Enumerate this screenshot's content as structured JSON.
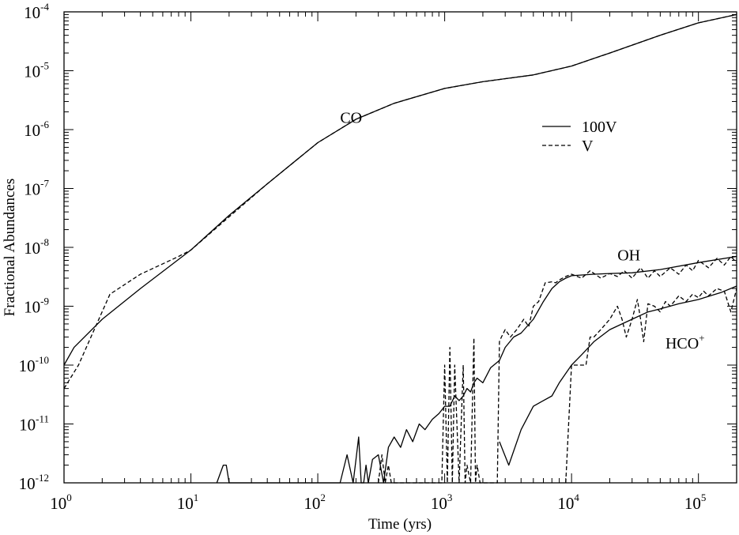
{
  "chart_data": {
    "type": "line",
    "xscale": "log",
    "yscale": "log",
    "xlabel": "Time (yrs)",
    "ylabel": "Fractional Abundances",
    "xlim": [
      1,
      200000
    ],
    "ylim": [
      1e-12,
      0.0001
    ],
    "x_ticks": [
      {
        "base": "10",
        "exp": "0"
      },
      {
        "base": "10",
        "exp": "1"
      },
      {
        "base": "10",
        "exp": "2"
      },
      {
        "base": "10",
        "exp": "3"
      },
      {
        "base": "10",
        "exp": "4"
      },
      {
        "base": "10",
        "exp": "5"
      }
    ],
    "y_ticks": [
      {
        "base": "10",
        "exp": "-12"
      },
      {
        "base": "10",
        "exp": "-11"
      },
      {
        "base": "10",
        "exp": "-10"
      },
      {
        "base": "10",
        "exp": "-9"
      },
      {
        "base": "10",
        "exp": "-8"
      },
      {
        "base": "10",
        "exp": "-7"
      },
      {
        "base": "10",
        "exp": "-6"
      },
      {
        "base": "10",
        "exp": "-5"
      },
      {
        "base": "10",
        "exp": "-4"
      }
    ],
    "legend": [
      {
        "label": "100V",
        "style": "solid"
      },
      {
        "label": "V",
        "style": "dashed"
      }
    ],
    "annotations": [
      {
        "text": "CO",
        "sup": "",
        "x": 150,
        "y": 1.3e-06
      },
      {
        "text": "OH",
        "sup": "",
        "x": 23000,
        "y": 6e-09
      },
      {
        "text": "HCO",
        "sup": "+",
        "x": 55000,
        "y": 1.9e-10
      }
    ],
    "series": [
      {
        "name": "CO 100V",
        "style": "solid",
        "x": [
          1,
          1.2,
          2,
          4,
          10,
          20,
          40,
          100,
          200,
          400,
          1000,
          2000,
          5000,
          10000,
          20000,
          50000,
          100000,
          200000
        ],
        "y": [
          1e-10,
          2e-10,
          6e-10,
          2e-09,
          9e-09,
          3.5e-08,
          1.2e-07,
          6e-07,
          1.5e-06,
          2.8e-06,
          5e-06,
          6.5e-06,
          8.5e-06,
          1.2e-05,
          2e-05,
          4e-05,
          6.5e-05,
          9e-05
        ]
      },
      {
        "name": "CO V",
        "style": "dashed",
        "x": [
          1,
          1.3,
          2.3,
          4,
          8,
          10,
          20,
          40,
          100,
          200,
          400,
          1000,
          2000,
          5000,
          10000,
          20000,
          50000,
          100000,
          200000
        ],
        "y": [
          4e-11,
          1e-10,
          1.6e-09,
          3.5e-09,
          7e-09,
          9e-09,
          3.3e-08,
          1.2e-07,
          6e-07,
          1.5e-06,
          2.8e-06,
          5e-06,
          6.5e-06,
          8.5e-06,
          1.2e-05,
          2e-05,
          4e-05,
          6.5e-05,
          9e-05
        ]
      },
      {
        "name": "OH 100V",
        "style": "solid",
        "x": [
          16,
          18,
          19,
          20,
          150,
          170,
          190,
          200,
          210,
          220,
          230,
          240,
          250,
          270,
          300,
          330,
          360,
          400,
          450,
          500,
          560,
          630,
          700,
          800,
          900,
          1000,
          1100,
          1200,
          1300,
          1400,
          1500,
          1600,
          1700,
          1800,
          2000,
          2300,
          2700,
          3000,
          3500,
          4000,
          5000,
          6000,
          7000,
          8000,
          9000,
          10000,
          15000,
          20000,
          30000,
          50000,
          100000,
          200000
        ],
        "y": [
          1e-12,
          2e-12,
          2e-12,
          1e-12,
          1e-12,
          3e-12,
          1e-12,
          2.5e-12,
          6e-12,
          1e-12,
          1e-12,
          2e-12,
          1e-12,
          2.5e-12,
          3e-12,
          1e-12,
          4e-12,
          6e-12,
          4e-12,
          8e-12,
          5e-12,
          1e-11,
          8e-12,
          1.2e-11,
          1.5e-11,
          2e-11,
          2e-11,
          3e-11,
          2.5e-11,
          3e-11,
          4e-11,
          3.5e-11,
          5e-11,
          6e-11,
          5e-11,
          9e-11,
          1.2e-10,
          2e-10,
          3e-10,
          3.5e-10,
          6e-10,
          1.2e-09,
          2e-09,
          2.6e-09,
          3e-09,
          3.3e-09,
          3.5e-09,
          3.6e-09,
          3.7e-09,
          4.2e-09,
          5.5e-09,
          7e-09
        ]
      },
      {
        "name": "OH V",
        "style": "dashed",
        "x": [
          300,
          320,
          340,
          360,
          380,
          400,
          950,
          1000,
          1050,
          1100,
          1150,
          1200,
          1300,
          1400,
          1450,
          1500,
          1600,
          1700,
          1750,
          1800,
          1900,
          2600,
          2700,
          2800,
          3000,
          3300,
          3700,
          4200,
          4600,
          5000,
          5500,
          6200,
          7000,
          7500,
          8000,
          9000,
          10000,
          12000,
          14000,
          17000,
          20000,
          23000,
          26000,
          30000,
          35000,
          40000,
          45000,
          50000,
          60000,
          70000,
          80000,
          90000,
          100000,
          120000,
          140000,
          160000,
          180000,
          200000
        ],
        "y": [
          1e-12,
          3e-12,
          1e-12,
          2e-12,
          1e-12,
          1e-12,
          1e-12,
          1e-10,
          1e-12,
          2e-10,
          1e-12,
          1e-10,
          1e-12,
          1e-10,
          1e-12,
          2e-12,
          1e-12,
          2.9e-10,
          1e-12,
          2e-12,
          1e-12,
          1e-12,
          2.5e-10,
          3e-10,
          4e-10,
          3e-10,
          4e-10,
          6e-10,
          4.5e-10,
          1e-09,
          1.2e-09,
          2.5e-09,
          2.6e-09,
          2.5e-09,
          2.8e-09,
          3.2e-09,
          3.5e-09,
          3e-09,
          4e-09,
          3e-09,
          3.6e-09,
          3.2e-09,
          4e-09,
          3e-09,
          4.5e-09,
          3e-09,
          4e-09,
          3.2e-09,
          4.5e-09,
          3.5e-09,
          5e-09,
          4e-09,
          6e-09,
          4.5e-09,
          6.5e-09,
          5e-09,
          7e-09,
          5.5e-09
        ]
      },
      {
        "name": "HCO+ 100V",
        "style": "solid",
        "x": [
          2700,
          3200,
          4000,
          5000,
          6000,
          7000,
          8000,
          10000,
          12000,
          15000,
          20000,
          25000,
          30000,
          40000,
          50000,
          70000,
          100000,
          150000,
          200000
        ],
        "y": [
          5e-12,
          2e-12,
          8e-12,
          2e-11,
          2.5e-11,
          3e-11,
          5e-11,
          1e-10,
          1.5e-10,
          2.5e-10,
          4e-10,
          5e-10,
          6e-10,
          8e-10,
          9e-10,
          1.1e-09,
          1.3e-09,
          1.7e-09,
          2.2e-09
        ]
      },
      {
        "name": "HCO+ V",
        "style": "dashed",
        "x": [
          9000,
          10000,
          13000,
          14000,
          15000,
          17000,
          20000,
          23000,
          25000,
          27000,
          30000,
          33000,
          35000,
          37000,
          40000,
          45000,
          50000,
          55000,
          60000,
          70000,
          80000,
          90000,
          100000,
          110000,
          120000,
          140000,
          160000,
          180000,
          200000
        ],
        "y": [
          1e-12,
          1e-10,
          1e-10,
          3e-10,
          3e-10,
          4e-10,
          6e-10,
          1e-09,
          6e-10,
          3e-10,
          6e-10,
          1.3e-09,
          6e-10,
          2.5e-10,
          1.1e-09,
          1e-09,
          8e-10,
          1.2e-09,
          1e-09,
          1.5e-09,
          1.2e-09,
          1.6e-09,
          1.4e-09,
          1.8e-09,
          1.5e-09,
          2e-09,
          1.8e-09,
          8e-10,
          2e-09
        ]
      }
    ]
  }
}
